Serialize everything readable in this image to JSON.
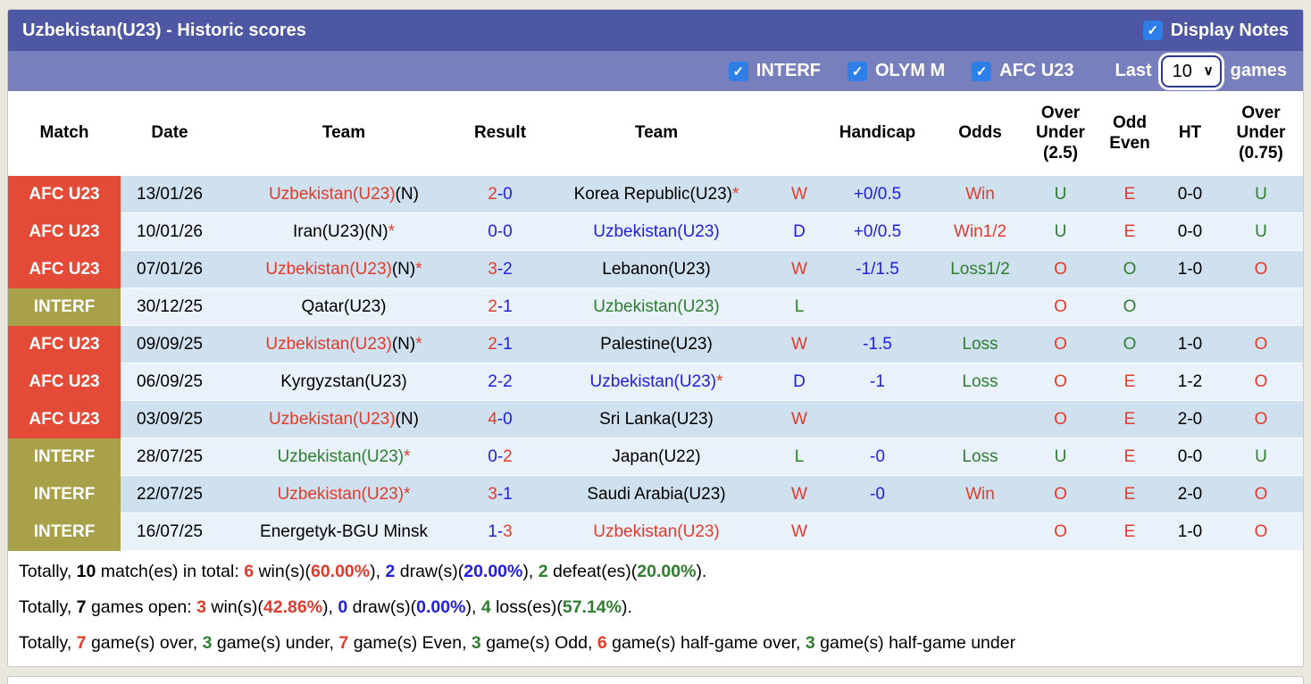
{
  "icons": {
    "check": "✓",
    "chevron_down": "∨"
  },
  "colors": {
    "title_bar": "#4d57a3",
    "filter_bar": "#7780bc",
    "badge_afc": "#e34b38",
    "badge_interf": "#a9a14a",
    "row_dark": "#cfe0ef",
    "row_light": "#e9f2fb",
    "checkbox_blue": "#2e7ee8",
    "text_red": "#e23b2b",
    "text_blue": "#2020dd",
    "text_green": "#2f7d2f"
  },
  "header": {
    "title": "Uzbekistan(U23) - Historic scores",
    "display_notes_label": "Display Notes",
    "display_notes_checked": true
  },
  "filters": {
    "competitions": [
      {
        "id": "interf",
        "label": "INTERF",
        "checked": true
      },
      {
        "id": "olym-m",
        "label": "OLYM M",
        "checked": true
      },
      {
        "id": "afc-u23",
        "label": "AFC U23",
        "checked": true
      }
    ],
    "last_label": "Last",
    "last_games_value": "10",
    "games_label": "games"
  },
  "table": {
    "headers": [
      {
        "id": "match",
        "lines": [
          "Match"
        ]
      },
      {
        "id": "date",
        "lines": [
          "Date"
        ]
      },
      {
        "id": "home-team",
        "lines": [
          "Team"
        ]
      },
      {
        "id": "result",
        "lines": [
          "Result"
        ]
      },
      {
        "id": "away-team",
        "lines": [
          "Team"
        ]
      },
      {
        "id": "outcome",
        "lines": [
          ""
        ]
      },
      {
        "id": "handicap",
        "lines": [
          "Handicap"
        ]
      },
      {
        "id": "odds",
        "lines": [
          "Odds"
        ]
      },
      {
        "id": "over-under-2-5",
        "lines": [
          "Over",
          "Under",
          "(2.5)"
        ]
      },
      {
        "id": "odd-even",
        "lines": [
          "Odd",
          "Even"
        ]
      },
      {
        "id": "ht",
        "lines": [
          "HT"
        ]
      },
      {
        "id": "over-under-0-75",
        "lines": [
          "Over",
          "Under",
          "(0.75)"
        ]
      }
    ],
    "rows": [
      {
        "badge": {
          "text": "AFC U23",
          "type": "afc"
        },
        "date": "13/01/26",
        "team1": [
          {
            "t": "Uzbekistan(U23)",
            "c": "r"
          },
          {
            "t": "(N)",
            "c": "k"
          }
        ],
        "result": [
          {
            "t": "2",
            "c": "r"
          },
          {
            "t": "-0",
            "c": "b"
          }
        ],
        "team2": [
          {
            "t": "Korea Republic(U23)",
            "c": "k"
          },
          {
            "t": "*",
            "c": "r"
          }
        ],
        "wdl": {
          "t": "W",
          "c": "r"
        },
        "handicap": {
          "t": "+0/0.5",
          "c": "b"
        },
        "odds": {
          "t": "Win",
          "c": "r"
        },
        "ou25": {
          "t": "U",
          "c": "g"
        },
        "odd_even": {
          "t": "E",
          "c": "r"
        },
        "ht": "0-0",
        "ou075": {
          "t": "U",
          "c": "g"
        }
      },
      {
        "badge": {
          "text": "AFC U23",
          "type": "afc"
        },
        "date": "10/01/26",
        "team1": [
          {
            "t": "Iran(U23)(N)",
            "c": "k"
          },
          {
            "t": "*",
            "c": "r"
          }
        ],
        "result": [
          {
            "t": "0-0",
            "c": "b"
          }
        ],
        "team2": [
          {
            "t": "Uzbekistan(U23)",
            "c": "b"
          }
        ],
        "wdl": {
          "t": "D",
          "c": "b"
        },
        "handicap": {
          "t": "+0/0.5",
          "c": "b"
        },
        "odds": {
          "t": "Win1/2",
          "c": "r"
        },
        "ou25": {
          "t": "U",
          "c": "g"
        },
        "odd_even": {
          "t": "E",
          "c": "r"
        },
        "ht": "0-0",
        "ou075": {
          "t": "U",
          "c": "g"
        }
      },
      {
        "badge": {
          "text": "AFC U23",
          "type": "afc"
        },
        "date": "07/01/26",
        "team1": [
          {
            "t": "Uzbekistan(U23)",
            "c": "r"
          },
          {
            "t": "(N)",
            "c": "k"
          },
          {
            "t": "*",
            "c": "r"
          }
        ],
        "result": [
          {
            "t": "3",
            "c": "r"
          },
          {
            "t": "-2",
            "c": "b"
          }
        ],
        "team2": [
          {
            "t": "Lebanon(U23)",
            "c": "k"
          }
        ],
        "wdl": {
          "t": "W",
          "c": "r"
        },
        "handicap": {
          "t": "-1/1.5",
          "c": "b"
        },
        "odds": {
          "t": "Loss1/2",
          "c": "g"
        },
        "ou25": {
          "t": "O",
          "c": "r"
        },
        "odd_even": {
          "t": "O",
          "c": "g"
        },
        "ht": "1-0",
        "ou075": {
          "t": "O",
          "c": "r"
        }
      },
      {
        "badge": {
          "text": "INTERF",
          "type": "interf"
        },
        "date": "30/12/25",
        "team1": [
          {
            "t": "Qatar(U23)",
            "c": "k"
          }
        ],
        "result": [
          {
            "t": "2",
            "c": "r"
          },
          {
            "t": "-1",
            "c": "b"
          }
        ],
        "team2": [
          {
            "t": "Uzbekistan(U23)",
            "c": "g"
          }
        ],
        "wdl": {
          "t": "L",
          "c": "g"
        },
        "handicap": null,
        "odds": null,
        "ou25": {
          "t": "O",
          "c": "r"
        },
        "odd_even": {
          "t": "O",
          "c": "g"
        },
        "ht": "",
        "ou075": null
      },
      {
        "badge": {
          "text": "AFC U23",
          "type": "afc"
        },
        "date": "09/09/25",
        "team1": [
          {
            "t": "Uzbekistan(U23)",
            "c": "r"
          },
          {
            "t": "(N)",
            "c": "k"
          },
          {
            "t": "*",
            "c": "r"
          }
        ],
        "result": [
          {
            "t": "2",
            "c": "r"
          },
          {
            "t": "-1",
            "c": "b"
          }
        ],
        "team2": [
          {
            "t": "Palestine(U23)",
            "c": "k"
          }
        ],
        "wdl": {
          "t": "W",
          "c": "r"
        },
        "handicap": {
          "t": "-1.5",
          "c": "b"
        },
        "odds": {
          "t": "Loss",
          "c": "g"
        },
        "ou25": {
          "t": "O",
          "c": "r"
        },
        "odd_even": {
          "t": "O",
          "c": "g"
        },
        "ht": "1-0",
        "ou075": {
          "t": "O",
          "c": "r"
        }
      },
      {
        "badge": {
          "text": "AFC U23",
          "type": "afc"
        },
        "date": "06/09/25",
        "team1": [
          {
            "t": "Kyrgyzstan(U23)",
            "c": "k"
          }
        ],
        "result": [
          {
            "t": "2-2",
            "c": "b"
          }
        ],
        "team2": [
          {
            "t": "Uzbekistan(U23)",
            "c": "b"
          },
          {
            "t": "*",
            "c": "r"
          }
        ],
        "wdl": {
          "t": "D",
          "c": "b"
        },
        "handicap": {
          "t": "-1",
          "c": "b"
        },
        "odds": {
          "t": "Loss",
          "c": "g"
        },
        "ou25": {
          "t": "O",
          "c": "r"
        },
        "odd_even": {
          "t": "E",
          "c": "r"
        },
        "ht": "1-2",
        "ou075": {
          "t": "O",
          "c": "r"
        }
      },
      {
        "badge": {
          "text": "AFC U23",
          "type": "afc"
        },
        "date": "03/09/25",
        "team1": [
          {
            "t": "Uzbekistan(U23)",
            "c": "r"
          },
          {
            "t": "(N)",
            "c": "k"
          }
        ],
        "result": [
          {
            "t": "4",
            "c": "r"
          },
          {
            "t": "-0",
            "c": "b"
          }
        ],
        "team2": [
          {
            "t": "Sri Lanka(U23)",
            "c": "k"
          }
        ],
        "wdl": {
          "t": "W",
          "c": "r"
        },
        "handicap": null,
        "odds": null,
        "ou25": {
          "t": "O",
          "c": "r"
        },
        "odd_even": {
          "t": "E",
          "c": "r"
        },
        "ht": "2-0",
        "ou075": {
          "t": "O",
          "c": "r"
        }
      },
      {
        "badge": {
          "text": "INTERF",
          "type": "interf"
        },
        "date": "28/07/25",
        "team1": [
          {
            "t": "Uzbekistan(U23)",
            "c": "g"
          },
          {
            "t": "*",
            "c": "r"
          }
        ],
        "result": [
          {
            "t": "0-",
            "c": "b"
          },
          {
            "t": "2",
            "c": "r"
          }
        ],
        "team2": [
          {
            "t": "Japan(U22)",
            "c": "k"
          }
        ],
        "wdl": {
          "t": "L",
          "c": "g"
        },
        "handicap": {
          "t": "-0",
          "c": "b"
        },
        "odds": {
          "t": "Loss",
          "c": "g"
        },
        "ou25": {
          "t": "U",
          "c": "g"
        },
        "odd_even": {
          "t": "E",
          "c": "r"
        },
        "ht": "0-0",
        "ou075": {
          "t": "U",
          "c": "g"
        }
      },
      {
        "badge": {
          "text": "INTERF",
          "type": "interf"
        },
        "date": "22/07/25",
        "team1": [
          {
            "t": "Uzbekistan(U23)",
            "c": "r"
          },
          {
            "t": "*",
            "c": "r"
          }
        ],
        "result": [
          {
            "t": "3",
            "c": "r"
          },
          {
            "t": "-1",
            "c": "b"
          }
        ],
        "team2": [
          {
            "t": "Saudi Arabia(U23)",
            "c": "k"
          }
        ],
        "wdl": {
          "t": "W",
          "c": "r"
        },
        "handicap": {
          "t": "-0",
          "c": "b"
        },
        "odds": {
          "t": "Win",
          "c": "r"
        },
        "ou25": {
          "t": "O",
          "c": "r"
        },
        "odd_even": {
          "t": "E",
          "c": "r"
        },
        "ht": "2-0",
        "ou075": {
          "t": "O",
          "c": "r"
        }
      },
      {
        "badge": {
          "text": "INTERF",
          "type": "interf"
        },
        "date": "16/07/25",
        "team1": [
          {
            "t": "Energetyk-BGU Minsk",
            "c": "k"
          }
        ],
        "result": [
          {
            "t": "1-",
            "c": "b"
          },
          {
            "t": "3",
            "c": "r"
          }
        ],
        "team2": [
          {
            "t": "Uzbekistan(U23)",
            "c": "r"
          }
        ],
        "wdl": {
          "t": "W",
          "c": "r"
        },
        "handicap": null,
        "odds": null,
        "ou25": {
          "t": "O",
          "c": "r"
        },
        "odd_even": {
          "t": "E",
          "c": "r"
        },
        "ht": "1-0",
        "ou075": {
          "t": "O",
          "c": "r"
        }
      }
    ]
  },
  "summary": {
    "lines": [
      [
        {
          "t": "Totally, ",
          "c": "k"
        },
        {
          "t": "10",
          "c": "k",
          "bold": true
        },
        {
          "t": " match(es) in total: ",
          "c": "k"
        },
        {
          "t": "6",
          "c": "r",
          "bold": true
        },
        {
          "t": " win(s)(",
          "c": "k"
        },
        {
          "t": "60.00%",
          "c": "r",
          "bold": true
        },
        {
          "t": "), ",
          "c": "k"
        },
        {
          "t": "2",
          "c": "b",
          "bold": true
        },
        {
          "t": " draw(s)(",
          "c": "k"
        },
        {
          "t": "20.00%",
          "c": "b",
          "bold": true
        },
        {
          "t": "), ",
          "c": "k"
        },
        {
          "t": "2",
          "c": "g",
          "bold": true
        },
        {
          "t": " defeat(es)(",
          "c": "k"
        },
        {
          "t": "20.00%",
          "c": "g",
          "bold": true
        },
        {
          "t": ").",
          "c": "k"
        }
      ],
      [
        {
          "t": "Totally, ",
          "c": "k"
        },
        {
          "t": "7",
          "c": "k",
          "bold": true
        },
        {
          "t": " games open: ",
          "c": "k"
        },
        {
          "t": "3",
          "c": "r",
          "bold": true
        },
        {
          "t": " win(s)(",
          "c": "k"
        },
        {
          "t": "42.86%",
          "c": "r",
          "bold": true
        },
        {
          "t": "), ",
          "c": "k"
        },
        {
          "t": "0",
          "c": "b",
          "bold": true
        },
        {
          "t": " draw(s)(",
          "c": "k"
        },
        {
          "t": "0.00%",
          "c": "b",
          "bold": true
        },
        {
          "t": "), ",
          "c": "k"
        },
        {
          "t": "4",
          "c": "g",
          "bold": true
        },
        {
          "t": " loss(es)(",
          "c": "k"
        },
        {
          "t": "57.14%",
          "c": "g",
          "bold": true
        },
        {
          "t": ").",
          "c": "k"
        }
      ],
      [
        {
          "t": "Totally, ",
          "c": "k"
        },
        {
          "t": "7",
          "c": "r",
          "bold": true
        },
        {
          "t": " game(s) over, ",
          "c": "k"
        },
        {
          "t": "3",
          "c": "g",
          "bold": true
        },
        {
          "t": " game(s) under, ",
          "c": "k"
        },
        {
          "t": "7",
          "c": "r",
          "bold": true
        },
        {
          "t": " game(s) Even, ",
          "c": "k"
        },
        {
          "t": "3",
          "c": "g",
          "bold": true
        },
        {
          "t": " game(s) Odd, ",
          "c": "k"
        },
        {
          "t": "6",
          "c": "r",
          "bold": true
        },
        {
          "t": " game(s) half-game over, ",
          "c": "k"
        },
        {
          "t": "3",
          "c": "g",
          "bold": true
        },
        {
          "t": " game(s) half-game under",
          "c": "k"
        }
      ]
    ]
  }
}
